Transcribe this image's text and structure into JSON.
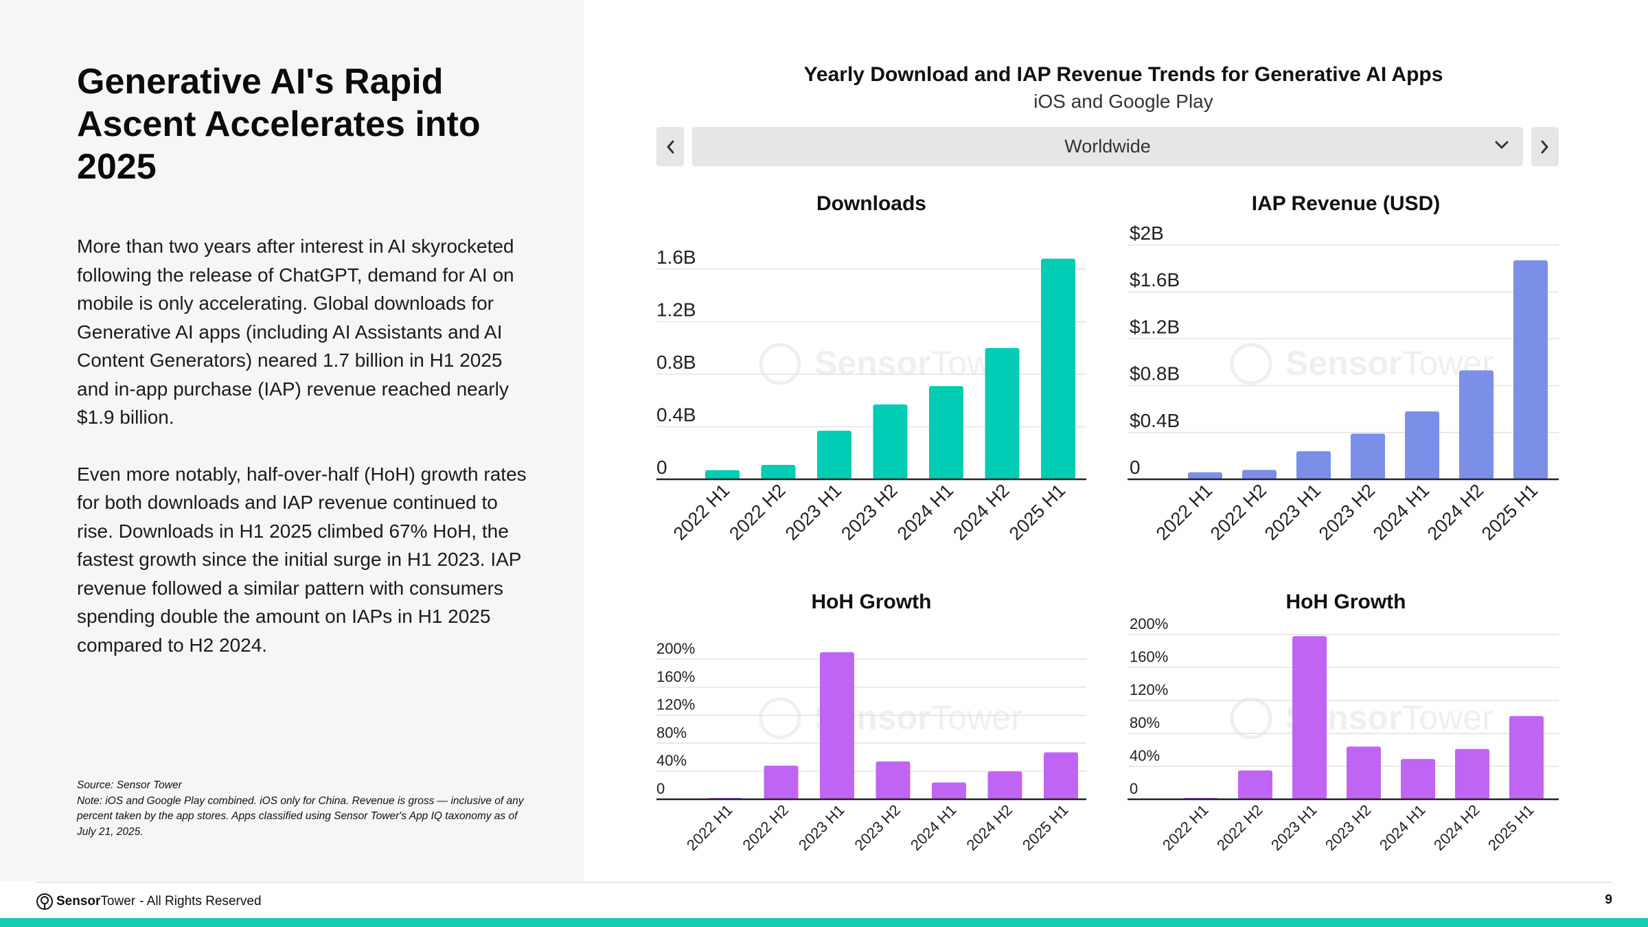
{
  "page": {
    "title": "Generative AI's Rapid Ascent Accelerates into 2025",
    "paragraphs": [
      "More than two years after interest in AI skyrocketed following the release of ChatGPT, demand for AI on mobile is only accelerating. Global downloads for Generative AI apps (including AI Assistants and AI Content Generators) neared 1.7 billion in H1 2025 and in-app purchase (IAP) revenue reached nearly $1.9 billion.",
      "Even more notably, half-over-half (HoH) growth rates for both downloads and IAP revenue continued to rise. Downloads in H1 2025 climbed 67% HoH, the fastest growth since the initial surge in H1 2023. IAP revenue followed a similar pattern with consumers spending double the amount on IAPs in H1 2025 compared to H2 2024."
    ],
    "source": "Source: Sensor Tower",
    "note": "Note: iOS and Google Play combined. iOS only for China. Revenue is gross — inclusive of any percent taken by the app stores. Apps classified using Sensor Tower's App IQ taxonomy as of July 21, 2025."
  },
  "header": {
    "title": "Yearly Download and IAP Revenue Trends for Generative AI Apps",
    "subtitle": "iOS and Google Play",
    "region": "Worldwide",
    "prev_icon": "chevron-left-icon",
    "next_icon": "chevron-right-icon",
    "dropdown_icon": "chevron-down-icon"
  },
  "footer": {
    "brand_a": "Sensor",
    "brand_b": "Tower",
    "rights": " - All Rights Reserved",
    "page_number": "9",
    "accent": "#14cdb2"
  },
  "watermark": {
    "brand_a": "Sensor",
    "brand_b": "Tower"
  },
  "chart_data": [
    {
      "id": "downloads",
      "type": "bar",
      "title": "Downloads",
      "categories": [
        "2022 H1",
        "2022 H2",
        "2023 H1",
        "2023 H2",
        "2024 H1",
        "2024 H2",
        "2025 H1"
      ],
      "values": [
        0.07,
        0.11,
        0.37,
        0.57,
        0.71,
        1.0,
        1.68
      ],
      "ylim": [
        0,
        1.6
      ],
      "ticks": [
        0,
        0.4,
        0.8,
        1.2,
        1.6
      ],
      "tick_labels": [
        "0",
        "0.4B",
        "0.8B",
        "1.2B",
        "1.6B"
      ],
      "color": "#00cdb4",
      "grid": true
    },
    {
      "id": "revenue",
      "type": "bar",
      "title": "IAP Revenue (USD)",
      "categories": [
        "2022 H1",
        "2022 H2",
        "2023 H1",
        "2023 H2",
        "2024 H1",
        "2024 H2",
        "2025 H1"
      ],
      "values": [
        0.06,
        0.08,
        0.24,
        0.39,
        0.58,
        0.93,
        1.87
      ],
      "ylim": [
        0,
        2.0
      ],
      "ticks": [
        0,
        0.4,
        0.8,
        1.2,
        1.6,
        2.0
      ],
      "tick_labels": [
        "0",
        "$0.4B",
        "$0.8B",
        "$1.2B",
        "$1.6B",
        "$2B"
      ],
      "color": "#7b8ee8",
      "grid": true
    },
    {
      "id": "downloads-growth",
      "type": "bar",
      "title": "HoH Growth",
      "categories": [
        "2022 H1",
        "2022 H2",
        "2023 H1",
        "2023 H2",
        "2024 H1",
        "2024 H2",
        "2025 H1"
      ],
      "values": [
        0,
        48,
        210,
        54,
        24,
        40,
        67
      ],
      "ylim": [
        0,
        200
      ],
      "ticks": [
        0,
        40,
        80,
        120,
        160,
        200
      ],
      "tick_labels": [
        "0",
        "40%",
        "80%",
        "120%",
        "160%",
        "200%"
      ],
      "color": "#c065f3",
      "grid": true
    },
    {
      "id": "revenue-growth",
      "type": "bar",
      "title": "HoH Growth",
      "categories": [
        "2022 H1",
        "2022 H2",
        "2023 H1",
        "2023 H2",
        "2024 H1",
        "2024 H2",
        "2025 H1"
      ],
      "values": [
        0,
        35,
        198,
        64,
        49,
        61,
        101
      ],
      "ylim": [
        0,
        200
      ],
      "ticks": [
        0,
        40,
        80,
        120,
        160,
        200
      ],
      "tick_labels": [
        "0",
        "40%",
        "80%",
        "120%",
        "160%",
        "200%"
      ],
      "color": "#c065f3",
      "grid": true
    }
  ]
}
